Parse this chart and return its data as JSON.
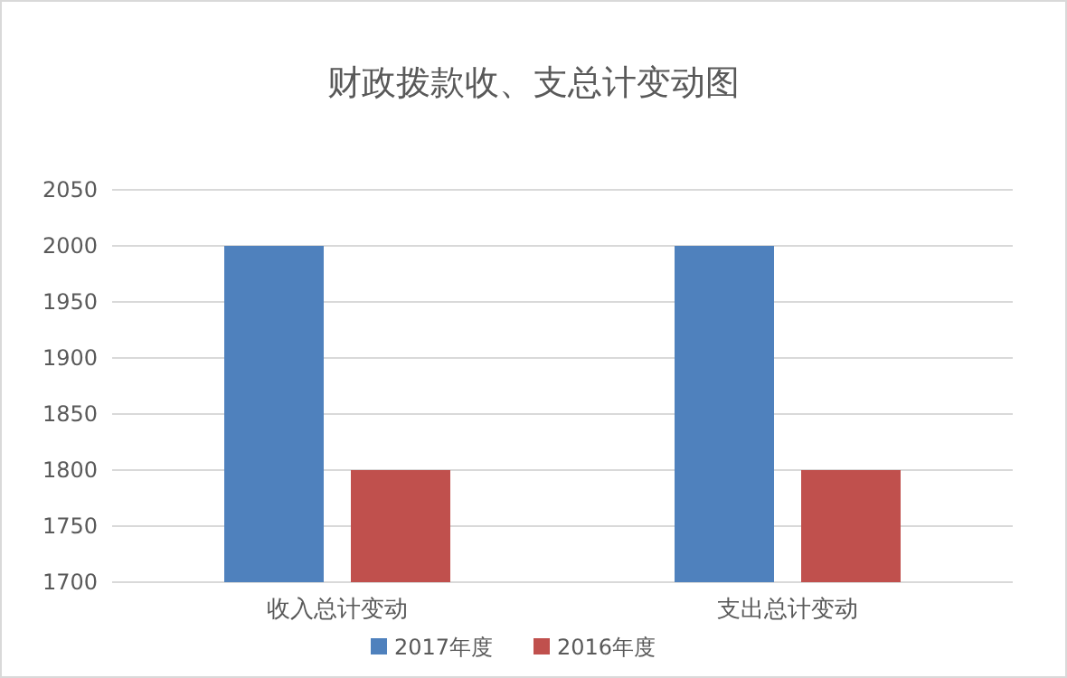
{
  "chart_data": {
    "type": "bar",
    "title": "财政拨款收、支总计变动图",
    "categories": [
      "收入总计变动",
      "支出总计变动"
    ],
    "series": [
      {
        "name": "2017年度",
        "color": "#4f81bd",
        "values": [
          2000,
          2000
        ]
      },
      {
        "name": "2016年度",
        "color": "#c0504d",
        "values": [
          1800,
          1800
        ]
      }
    ],
    "ylim": [
      1700,
      2050
    ],
    "yticks": [
      1700,
      1750,
      1800,
      1850,
      1900,
      1950,
      2000,
      2050
    ],
    "grid": "y",
    "legend": "bottom"
  }
}
